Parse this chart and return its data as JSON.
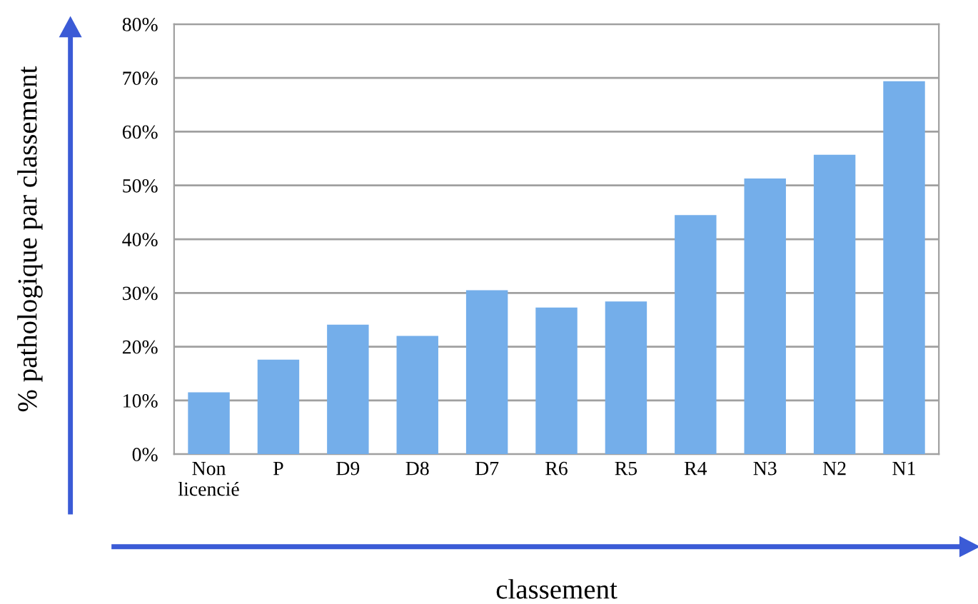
{
  "chart_data": {
    "type": "bar",
    "xlabel": "classement",
    "ylabel": "% pathologique par classement",
    "categories": [
      "Non licencié",
      "P",
      "D9",
      "D8",
      "D7",
      "R6",
      "R5",
      "R4",
      "N3",
      "N2",
      "N1"
    ],
    "values": [
      11.5,
      17.6,
      24.1,
      22.0,
      30.5,
      27.3,
      28.4,
      44.5,
      51.3,
      55.7,
      69.4
    ],
    "color": "#74aeea",
    "ylim": [
      0,
      80
    ],
    "yticks": [
      {
        "value": 0,
        "label": "0%"
      },
      {
        "value": 10,
        "label": "10%"
      },
      {
        "value": 20,
        "label": "20%"
      },
      {
        "value": 30,
        "label": "30%"
      },
      {
        "value": 40,
        "label": "40%"
      },
      {
        "value": 50,
        "label": "50%"
      },
      {
        "value": 60,
        "label": "60%"
      },
      {
        "value": 70,
        "label": "70%"
      },
      {
        "value": 80,
        "label": "80%"
      }
    ],
    "grid": "y"
  }
}
